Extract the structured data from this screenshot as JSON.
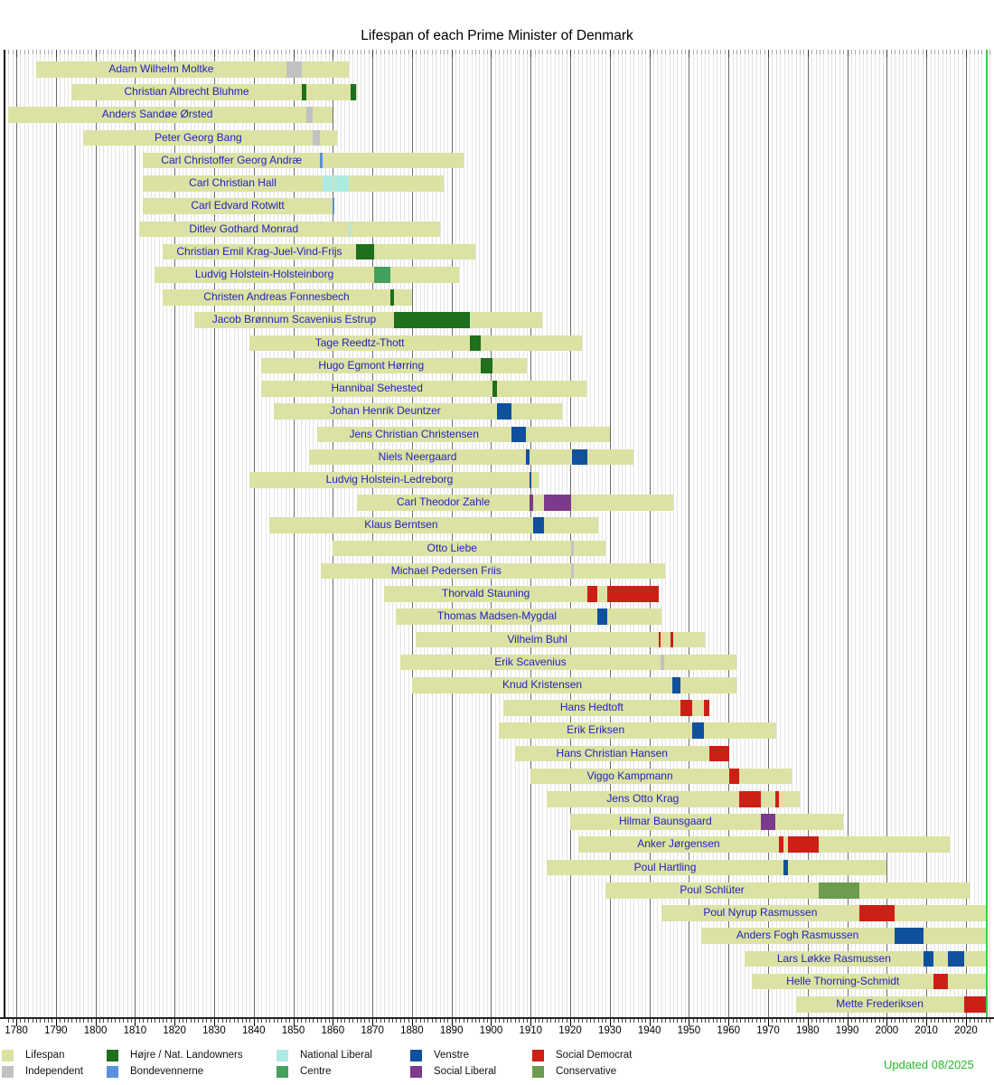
{
  "title": "Lifespan of each Prime Minister of Denmark",
  "updated": "Updated 08/2025",
  "legend": [
    {
      "key": "lifespan",
      "label": "Lifespan",
      "color": "#dce2a3"
    },
    {
      "key": "independent",
      "label": "Independent",
      "color": "#c2c2c2"
    },
    {
      "key": "hojre",
      "label": "Højre / Nat. Landowners",
      "color": "#1e6f1e"
    },
    {
      "key": "bondevennerne",
      "label": "Bondevennerne",
      "color": "#5c8fdd"
    },
    {
      "key": "national_liberal",
      "label": "National Liberal",
      "color": "#aeeae4"
    },
    {
      "key": "centre",
      "label": "Centre",
      "color": "#44a05c"
    },
    {
      "key": "venstre",
      "label": "Venstre",
      "color": "#10519e"
    },
    {
      "key": "social_liberal",
      "label": "Social Liberal",
      "color": "#7c3a8c"
    },
    {
      "key": "social_democrat",
      "label": "Social Democrat",
      "color": "#cc2017"
    },
    {
      "key": "conservative",
      "label": "Conservative",
      "color": "#6d9c51"
    }
  ],
  "chart_data": {
    "type": "gantt-timeline",
    "xlabel": "Year",
    "axis": {
      "grid_year_start": 1778,
      "grid_year_end": 2026,
      "tick_label_start": 1780,
      "tick_label_end": 2020,
      "tick_label_step": 10,
      "now_year": 2025.3,
      "grid": true
    },
    "prime_ministers": [
      {
        "name": "Adam Wilhelm Moltke",
        "born": 1785,
        "died": 1864,
        "terms": [
          {
            "from": 1848.25,
            "to": 1852.1,
            "party": "independent"
          }
        ]
      },
      {
        "name": "Christian Albrecht Bluhme",
        "born": 1794,
        "died": 1866,
        "terms": [
          {
            "from": 1852.1,
            "to": 1853.3,
            "party": "hojre"
          },
          {
            "from": 1864.5,
            "to": 1865.85,
            "party": "hojre"
          }
        ]
      },
      {
        "name": "Anders Sandøe Ørsted",
        "born": 1778,
        "died": 1860,
        "terms": [
          {
            "from": 1853.3,
            "to": 1854.95,
            "party": "independent"
          }
        ]
      },
      {
        "name": "Peter Georg Bang",
        "born": 1797,
        "died": 1861,
        "terms": [
          {
            "from": 1854.95,
            "to": 1856.8,
            "party": "independent"
          }
        ]
      },
      {
        "name": "Carl Christoffer Georg Andræ",
        "born": 1812,
        "died": 1893,
        "terms": [
          {
            "from": 1856.8,
            "to": 1857.4,
            "party": "bondevennerne"
          }
        ]
      },
      {
        "name": "Carl Christian Hall",
        "born": 1812,
        "died": 1888,
        "terms": [
          {
            "from": 1857.4,
            "to": 1859.92,
            "party": "national_liberal"
          },
          {
            "from": 1860.15,
            "to": 1863.99,
            "party": "national_liberal"
          }
        ]
      },
      {
        "name": "Carl Edvard Rotwitt",
        "born": 1812,
        "died": 1860,
        "terms": [
          {
            "from": 1859.92,
            "to": 1860.15,
            "party": "bondevennerne"
          }
        ]
      },
      {
        "name": "Ditlev Gothard Monrad",
        "born": 1811,
        "died": 1887,
        "terms": [
          {
            "from": 1863.99,
            "to": 1864.55,
            "party": "national_liberal"
          }
        ]
      },
      {
        "name": "Christian Emil Krag-Juel-Vind-Frijs",
        "born": 1817,
        "died": 1896,
        "terms": [
          {
            "from": 1865.85,
            "to": 1870.4,
            "party": "hojre"
          }
        ]
      },
      {
        "name": "Ludvig Holstein-Holsteinborg",
        "born": 1815,
        "died": 1892,
        "terms": [
          {
            "from": 1870.4,
            "to": 1874.55,
            "party": "centre"
          }
        ]
      },
      {
        "name": "Christen Andreas Fonnesbech",
        "born": 1817,
        "died": 1880,
        "terms": [
          {
            "from": 1874.55,
            "to": 1875.45,
            "party": "hojre"
          }
        ]
      },
      {
        "name": "Jacob Brønnum Scavenius Estrup",
        "born": 1825,
        "died": 1913,
        "terms": [
          {
            "from": 1875.45,
            "to": 1894.6,
            "party": "hojre"
          }
        ]
      },
      {
        "name": "Tage Reedtz-Thott",
        "born": 1839,
        "died": 1923,
        "terms": [
          {
            "from": 1894.6,
            "to": 1897.4,
            "party": "hojre"
          }
        ]
      },
      {
        "name": "Hugo Egmont Hørring",
        "born": 1842,
        "died": 1909,
        "terms": [
          {
            "from": 1897.4,
            "to": 1900.33,
            "party": "hojre"
          }
        ]
      },
      {
        "name": "Hannibal Sehested",
        "born": 1842,
        "died": 1924,
        "terms": [
          {
            "from": 1900.33,
            "to": 1901.55,
            "party": "hojre"
          }
        ]
      },
      {
        "name": "Johan Henrik Deuntzer",
        "born": 1845,
        "died": 1918,
        "terms": [
          {
            "from": 1901.55,
            "to": 1905.05,
            "party": "venstre"
          }
        ]
      },
      {
        "name": "Jens Christian Christensen",
        "born": 1856,
        "died": 1930,
        "terms": [
          {
            "from": 1905.05,
            "to": 1908.8,
            "party": "venstre"
          }
        ]
      },
      {
        "name": "Niels Neergaard",
        "born": 1854,
        "died": 1936,
        "terms": [
          {
            "from": 1908.8,
            "to": 1909.62,
            "party": "venstre"
          },
          {
            "from": 1920.38,
            "to": 1924.32,
            "party": "venstre"
          }
        ]
      },
      {
        "name": "Ludvig Holstein-Ledreborg",
        "born": 1839,
        "died": 1912,
        "terms": [
          {
            "from": 1909.62,
            "to": 1909.82,
            "party": "venstre"
          }
        ]
      },
      {
        "name": "Carl Theodor Zahle",
        "born": 1866,
        "died": 1946,
        "terms": [
          {
            "from": 1909.82,
            "to": 1910.52,
            "party": "social_liberal"
          },
          {
            "from": 1913.45,
            "to": 1920.25,
            "party": "social_liberal"
          }
        ]
      },
      {
        "name": "Klaus Berntsen",
        "born": 1844,
        "died": 1927,
        "terms": [
          {
            "from": 1910.52,
            "to": 1913.45,
            "party": "venstre"
          }
        ]
      },
      {
        "name": "Otto Liebe",
        "born": 1860,
        "died": 1929,
        "terms": [
          {
            "from": 1920.25,
            "to": 1920.31,
            "party": "independent"
          }
        ]
      },
      {
        "name": "Michael Pedersen Friis",
        "born": 1857,
        "died": 1944,
        "terms": [
          {
            "from": 1920.31,
            "to": 1920.38,
            "party": "independent"
          }
        ]
      },
      {
        "name": "Thorvald Stauning",
        "born": 1873,
        "died": 1942,
        "terms": [
          {
            "from": 1924.32,
            "to": 1926.95,
            "party": "social_democrat"
          },
          {
            "from": 1929.32,
            "to": 1942.35,
            "party": "social_democrat"
          }
        ]
      },
      {
        "name": "Thomas Madsen-Mygdal",
        "born": 1876,
        "died": 1943,
        "terms": [
          {
            "from": 1926.95,
            "to": 1929.32,
            "party": "venstre"
          }
        ]
      },
      {
        "name": "Vilhelm Buhl",
        "born": 1881,
        "died": 1954,
        "terms": [
          {
            "from": 1942.35,
            "to": 1942.85,
            "party": "social_democrat"
          },
          {
            "from": 1945.35,
            "to": 1945.85,
            "party": "social_democrat"
          }
        ]
      },
      {
        "name": "Erik Scavenius",
        "born": 1877,
        "died": 1962,
        "terms": [
          {
            "from": 1942.85,
            "to": 1943.65,
            "party": "independent"
          }
        ]
      },
      {
        "name": "Knud Kristensen",
        "born": 1880,
        "died": 1962,
        "terms": [
          {
            "from": 1945.85,
            "to": 1947.87,
            "party": "venstre"
          }
        ]
      },
      {
        "name": "Hans Hedtoft",
        "born": 1903,
        "died": 1955,
        "terms": [
          {
            "from": 1947.87,
            "to": 1950.82,
            "party": "social_democrat"
          },
          {
            "from": 1953.75,
            "to": 1955.09,
            "party": "social_democrat"
          }
        ]
      },
      {
        "name": "Erik Eriksen",
        "born": 1902,
        "died": 1972,
        "terms": [
          {
            "from": 1950.82,
            "to": 1953.75,
            "party": "venstre"
          }
        ]
      },
      {
        "name": "Hans Christian Hansen",
        "born": 1906,
        "died": 1960,
        "terms": [
          {
            "from": 1955.09,
            "to": 1960.15,
            "party": "social_democrat"
          }
        ]
      },
      {
        "name": "Viggo Kampmann",
        "born": 1910,
        "died": 1976,
        "terms": [
          {
            "from": 1960.15,
            "to": 1962.67,
            "party": "social_democrat"
          }
        ]
      },
      {
        "name": "Jens Otto Krag",
        "born": 1914,
        "died": 1978,
        "terms": [
          {
            "from": 1962.67,
            "to": 1968.1,
            "party": "social_democrat"
          },
          {
            "from": 1971.78,
            "to": 1972.75,
            "party": "social_democrat"
          }
        ]
      },
      {
        "name": "Hilmar Baunsgaard",
        "born": 1920,
        "died": 1989,
        "terms": [
          {
            "from": 1968.1,
            "to": 1971.78,
            "party": "social_liberal"
          }
        ]
      },
      {
        "name": "Anker Jørgensen",
        "born": 1922,
        "died": 2016,
        "terms": [
          {
            "from": 1972.75,
            "to": 1973.95,
            "party": "social_democrat"
          },
          {
            "from": 1975.1,
            "to": 1982.7,
            "party": "social_democrat"
          }
        ]
      },
      {
        "name": "Poul Hartling",
        "born": 1914,
        "died": 2000,
        "terms": [
          {
            "from": 1973.95,
            "to": 1975.1,
            "party": "venstre"
          }
        ]
      },
      {
        "name": "Poul Schlüter",
        "born": 1929,
        "died": 2021,
        "terms": [
          {
            "from": 1982.7,
            "to": 1993.05,
            "party": "conservative"
          }
        ]
      },
      {
        "name": "Poul Nyrup Rasmussen",
        "born": 1943,
        "died": null,
        "terms": [
          {
            "from": 1993.05,
            "to": 2001.9,
            "party": "social_democrat"
          }
        ]
      },
      {
        "name": "Anders Fogh Rasmussen",
        "born": 1953,
        "died": null,
        "terms": [
          {
            "from": 2001.9,
            "to": 2009.27,
            "party": "venstre"
          }
        ]
      },
      {
        "name": "Lars Løkke Rasmussen",
        "born": 1964,
        "died": null,
        "terms": [
          {
            "from": 2009.27,
            "to": 2011.75,
            "party": "venstre"
          },
          {
            "from": 2015.45,
            "to": 2019.45,
            "party": "venstre"
          }
        ]
      },
      {
        "name": "Helle Thorning-Schmidt",
        "born": 1966,
        "died": null,
        "terms": [
          {
            "from": 2011.75,
            "to": 2015.45,
            "party": "social_democrat"
          }
        ]
      },
      {
        "name": "Mette Frederiksen",
        "born": 1977,
        "died": null,
        "terms": [
          {
            "from": 2019.45,
            "to": 2025.3,
            "party": "social_democrat"
          }
        ]
      }
    ]
  }
}
